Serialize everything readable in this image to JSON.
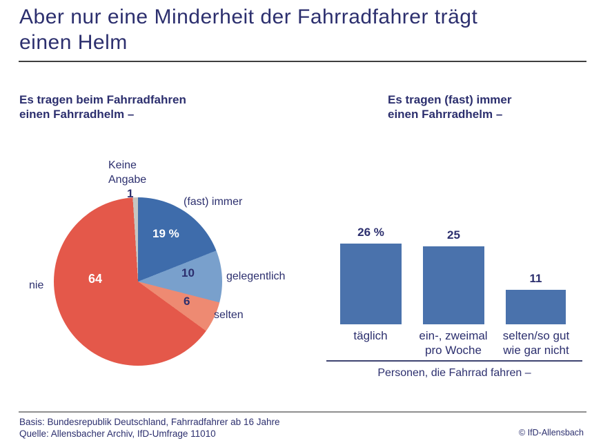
{
  "header": {
    "title": "Aber nur eine Minderheit der Fahrradfahrer trägt\neinen Helm"
  },
  "left_panel": {
    "subtitle": "Es tragen beim Fahrradfahren\neinen Fahrradhelm –"
  },
  "right_panel": {
    "subtitle": "Es tragen (fast) immer\neinen Fahrradhelm –",
    "axis_caption": "Personen, die Fahrrad fahren –"
  },
  "footer": {
    "basis": "Basis: Bundesrepublik Deutschland, Fahrradfahrer ab 16 Jahre",
    "quelle": "Quelle: Allensbacher Archiv, IfD-Umfrage 11010",
    "copyright": "© IfD-Allensbach"
  },
  "colors": {
    "text_navy": "#2c2f6e",
    "pie_fast_immer": "#3e6cab",
    "pie_gelegentlich": "#79a0cc",
    "pie_selten": "#ee8a72",
    "pie_nie": "#e4584a",
    "pie_keine_angabe": "#c6c6c2",
    "bar_blue": "#4a72ac"
  },
  "chart_data": [
    {
      "type": "pie",
      "title": "Es tragen beim Fahrradfahren einen Fahrradhelm –",
      "unit": "percent",
      "start_angle_deg": 0,
      "direction": "clockwise",
      "slices": [
        {
          "label": "(fast) immer",
          "value": 19,
          "display": "19 %",
          "color": "#3e6cab",
          "value_text_color": "#ffffff"
        },
        {
          "label": "gelegentlich",
          "value": 10,
          "display": "10",
          "color": "#79a0cc",
          "value_text_color": "#2c2f6e"
        },
        {
          "label": "selten",
          "value": 6,
          "display": "6",
          "color": "#ee8a72",
          "value_text_color": "#2c2f6e"
        },
        {
          "label": "nie",
          "value": 64,
          "display": "64",
          "color": "#e4584a",
          "value_text_color": "#ffffff"
        },
        {
          "label": "Keine Angabe",
          "value": 1,
          "display": "1",
          "color": "#c6c6c2",
          "value_text_color": "#2c2f6e"
        }
      ]
    },
    {
      "type": "bar",
      "title": "Es tragen (fast) immer einen Fahrradhelm –",
      "categories": [
        "täglich",
        "ein-, zweimal\npro Woche",
        "selten/so gut\nwie gar nicht"
      ],
      "values": [
        26,
        25,
        11
      ],
      "value_labels": [
        "26 %",
        "25",
        "11"
      ],
      "bar_color": "#4a72ac",
      "xlabel": "Personen, die Fahrrad fahren –",
      "ylim": [
        0,
        26
      ],
      "grid": false,
      "legend": "none"
    }
  ]
}
